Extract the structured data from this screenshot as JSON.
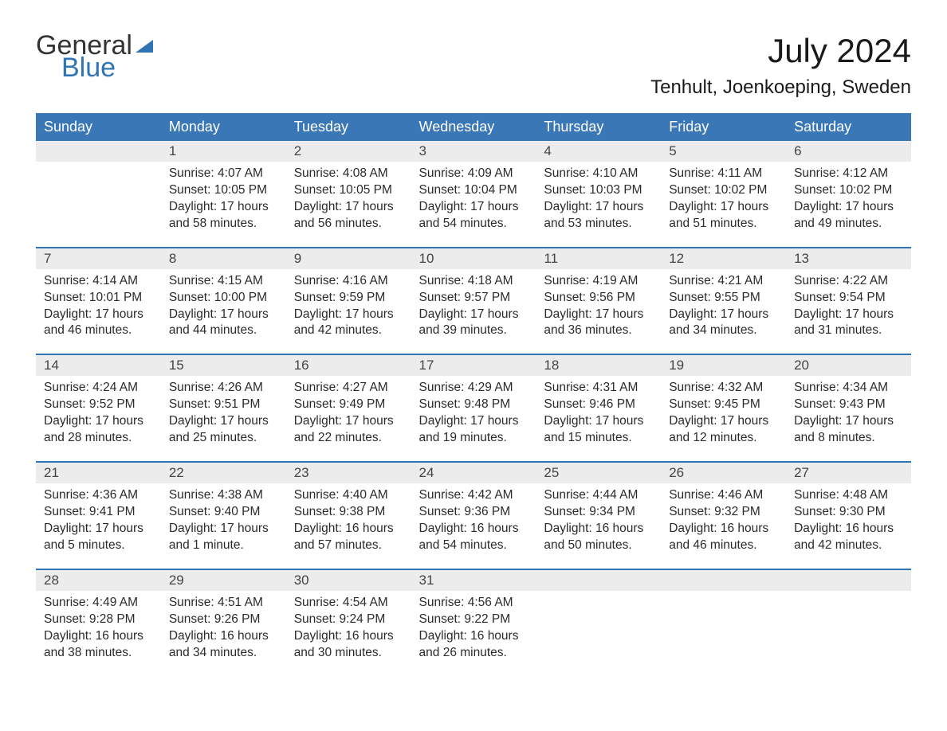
{
  "brand": {
    "word1": "General",
    "word2": "Blue"
  },
  "title": "July 2024",
  "location": "Tenhult, Joenkoeping, Sweden",
  "colors": {
    "accent": "#3a77b7",
    "accent_dark": "#2f74b5",
    "row_stripe": "#ececec",
    "text": "#2b2b2b",
    "bg": "#ffffff"
  },
  "calendar": {
    "columns": [
      "Sunday",
      "Monday",
      "Tuesday",
      "Wednesday",
      "Thursday",
      "Friday",
      "Saturday"
    ],
    "weeks": [
      [
        null,
        {
          "n": "1",
          "sr": "Sunrise: 4:07 AM",
          "ss": "Sunset: 10:05 PM",
          "d1": "Daylight: 17 hours",
          "d2": "and 58 minutes."
        },
        {
          "n": "2",
          "sr": "Sunrise: 4:08 AM",
          "ss": "Sunset: 10:05 PM",
          "d1": "Daylight: 17 hours",
          "d2": "and 56 minutes."
        },
        {
          "n": "3",
          "sr": "Sunrise: 4:09 AM",
          "ss": "Sunset: 10:04 PM",
          "d1": "Daylight: 17 hours",
          "d2": "and 54 minutes."
        },
        {
          "n": "4",
          "sr": "Sunrise: 4:10 AM",
          "ss": "Sunset: 10:03 PM",
          "d1": "Daylight: 17 hours",
          "d2": "and 53 minutes."
        },
        {
          "n": "5",
          "sr": "Sunrise: 4:11 AM",
          "ss": "Sunset: 10:02 PM",
          "d1": "Daylight: 17 hours",
          "d2": "and 51 minutes."
        },
        {
          "n": "6",
          "sr": "Sunrise: 4:12 AM",
          "ss": "Sunset: 10:02 PM",
          "d1": "Daylight: 17 hours",
          "d2": "and 49 minutes."
        }
      ],
      [
        {
          "n": "7",
          "sr": "Sunrise: 4:14 AM",
          "ss": "Sunset: 10:01 PM",
          "d1": "Daylight: 17 hours",
          "d2": "and 46 minutes."
        },
        {
          "n": "8",
          "sr": "Sunrise: 4:15 AM",
          "ss": "Sunset: 10:00 PM",
          "d1": "Daylight: 17 hours",
          "d2": "and 44 minutes."
        },
        {
          "n": "9",
          "sr": "Sunrise: 4:16 AM",
          "ss": "Sunset: 9:59 PM",
          "d1": "Daylight: 17 hours",
          "d2": "and 42 minutes."
        },
        {
          "n": "10",
          "sr": "Sunrise: 4:18 AM",
          "ss": "Sunset: 9:57 PM",
          "d1": "Daylight: 17 hours",
          "d2": "and 39 minutes."
        },
        {
          "n": "11",
          "sr": "Sunrise: 4:19 AM",
          "ss": "Sunset: 9:56 PM",
          "d1": "Daylight: 17 hours",
          "d2": "and 36 minutes."
        },
        {
          "n": "12",
          "sr": "Sunrise: 4:21 AM",
          "ss": "Sunset: 9:55 PM",
          "d1": "Daylight: 17 hours",
          "d2": "and 34 minutes."
        },
        {
          "n": "13",
          "sr": "Sunrise: 4:22 AM",
          "ss": "Sunset: 9:54 PM",
          "d1": "Daylight: 17 hours",
          "d2": "and 31 minutes."
        }
      ],
      [
        {
          "n": "14",
          "sr": "Sunrise: 4:24 AM",
          "ss": "Sunset: 9:52 PM",
          "d1": "Daylight: 17 hours",
          "d2": "and 28 minutes."
        },
        {
          "n": "15",
          "sr": "Sunrise: 4:26 AM",
          "ss": "Sunset: 9:51 PM",
          "d1": "Daylight: 17 hours",
          "d2": "and 25 minutes."
        },
        {
          "n": "16",
          "sr": "Sunrise: 4:27 AM",
          "ss": "Sunset: 9:49 PM",
          "d1": "Daylight: 17 hours",
          "d2": "and 22 minutes."
        },
        {
          "n": "17",
          "sr": "Sunrise: 4:29 AM",
          "ss": "Sunset: 9:48 PM",
          "d1": "Daylight: 17 hours",
          "d2": "and 19 minutes."
        },
        {
          "n": "18",
          "sr": "Sunrise: 4:31 AM",
          "ss": "Sunset: 9:46 PM",
          "d1": "Daylight: 17 hours",
          "d2": "and 15 minutes."
        },
        {
          "n": "19",
          "sr": "Sunrise: 4:32 AM",
          "ss": "Sunset: 9:45 PM",
          "d1": "Daylight: 17 hours",
          "d2": "and 12 minutes."
        },
        {
          "n": "20",
          "sr": "Sunrise: 4:34 AM",
          "ss": "Sunset: 9:43 PM",
          "d1": "Daylight: 17 hours",
          "d2": "and 8 minutes."
        }
      ],
      [
        {
          "n": "21",
          "sr": "Sunrise: 4:36 AM",
          "ss": "Sunset: 9:41 PM",
          "d1": "Daylight: 17 hours",
          "d2": "and 5 minutes."
        },
        {
          "n": "22",
          "sr": "Sunrise: 4:38 AM",
          "ss": "Sunset: 9:40 PM",
          "d1": "Daylight: 17 hours",
          "d2": "and 1 minute."
        },
        {
          "n": "23",
          "sr": "Sunrise: 4:40 AM",
          "ss": "Sunset: 9:38 PM",
          "d1": "Daylight: 16 hours",
          "d2": "and 57 minutes."
        },
        {
          "n": "24",
          "sr": "Sunrise: 4:42 AM",
          "ss": "Sunset: 9:36 PM",
          "d1": "Daylight: 16 hours",
          "d2": "and 54 minutes."
        },
        {
          "n": "25",
          "sr": "Sunrise: 4:44 AM",
          "ss": "Sunset: 9:34 PM",
          "d1": "Daylight: 16 hours",
          "d2": "and 50 minutes."
        },
        {
          "n": "26",
          "sr": "Sunrise: 4:46 AM",
          "ss": "Sunset: 9:32 PM",
          "d1": "Daylight: 16 hours",
          "d2": "and 46 minutes."
        },
        {
          "n": "27",
          "sr": "Sunrise: 4:48 AM",
          "ss": "Sunset: 9:30 PM",
          "d1": "Daylight: 16 hours",
          "d2": "and 42 minutes."
        }
      ],
      [
        {
          "n": "28",
          "sr": "Sunrise: 4:49 AM",
          "ss": "Sunset: 9:28 PM",
          "d1": "Daylight: 16 hours",
          "d2": "and 38 minutes."
        },
        {
          "n": "29",
          "sr": "Sunrise: 4:51 AM",
          "ss": "Sunset: 9:26 PM",
          "d1": "Daylight: 16 hours",
          "d2": "and 34 minutes."
        },
        {
          "n": "30",
          "sr": "Sunrise: 4:54 AM",
          "ss": "Sunset: 9:24 PM",
          "d1": "Daylight: 16 hours",
          "d2": "and 30 minutes."
        },
        {
          "n": "31",
          "sr": "Sunrise: 4:56 AM",
          "ss": "Sunset: 9:22 PM",
          "d1": "Daylight: 16 hours",
          "d2": "and 26 minutes."
        },
        null,
        null,
        null
      ]
    ]
  }
}
